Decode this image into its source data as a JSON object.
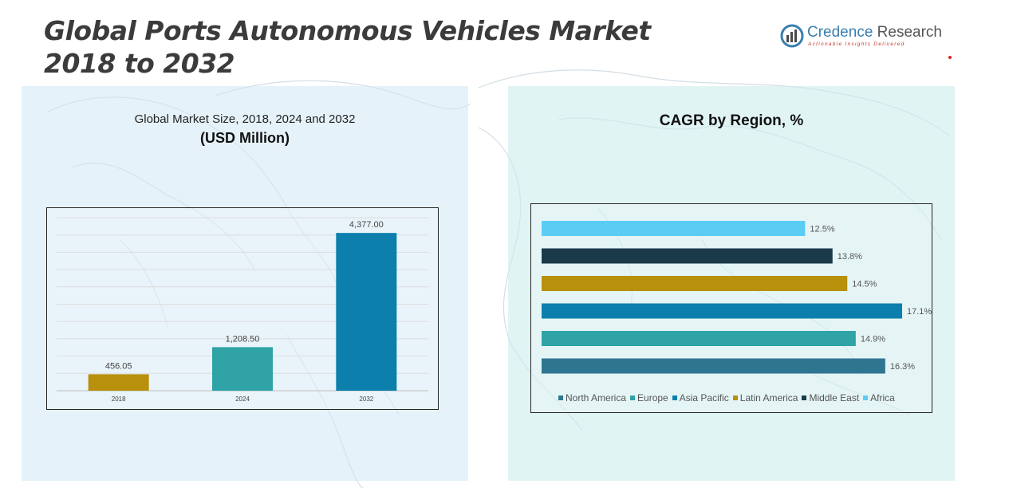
{
  "page": {
    "title_line1": "Global Ports Autonomous Vehicles Market",
    "title_line2": "2018 to 2032"
  },
  "logo": {
    "name_part1": "Credence",
    "name_part2": " Research",
    "tagline": "Actionable Insights Delivered",
    "icon": "credence-logo-icon"
  },
  "left_panel": {
    "subtitle": "Global Market Size, 2018, 2024 and 2032",
    "unit": "(USD Million)"
  },
  "right_panel": {
    "title": "CAGR by Region, %"
  },
  "colors": {
    "bar_2018": "#b8900c",
    "bar_2024": "#2fa3a5",
    "bar_2032": "#0d7fad",
    "north_america": "#2f7590",
    "europe": "#2fa3a5",
    "asia_pacific": "#0d7fad",
    "latin_america": "#b8900c",
    "middle_east": "#1a3a4a",
    "africa": "#5bcdf5"
  },
  "chart_data": [
    {
      "type": "bar",
      "title": "Global Market Size, 2018, 2024 and 2032",
      "ylabel": "(USD Million)",
      "categories": [
        "2018",
        "2024",
        "2032"
      ],
      "values": [
        456.05,
        1208.5,
        4377.0
      ],
      "labels": [
        "456.05",
        "1,208.50",
        "4,377.00"
      ],
      "ylim": [
        0,
        4800
      ],
      "grid": true
    },
    {
      "type": "bar",
      "orientation": "horizontal",
      "title": "CAGR by Region, %",
      "categories": [
        "Africa",
        "Middle East",
        "Latin America",
        "Asia Pacific",
        "Europe",
        "North America"
      ],
      "values": [
        12.5,
        13.8,
        14.5,
        17.1,
        14.9,
        16.3
      ],
      "labels": [
        "12.5%",
        "13.8%",
        "14.5%",
        "17.1%",
        "14.9%",
        "16.3%"
      ],
      "legend": [
        "North America",
        "Europe",
        "Asia Pacific",
        "Latin America",
        "Middle East",
        "Africa"
      ],
      "legend_position": "bottom",
      "xlim": [
        0,
        17.1
      ]
    }
  ]
}
